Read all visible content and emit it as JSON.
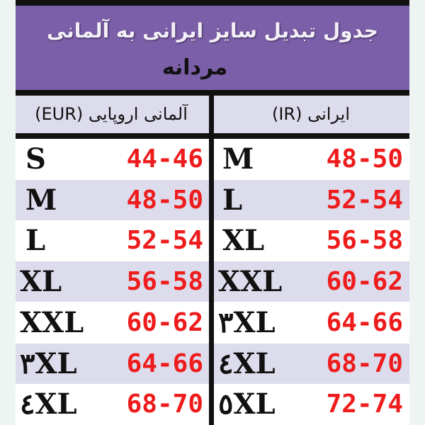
{
  "title": "جدول تبدیل سایز ایرانی به آلمانی",
  "subtitle": "مردانه",
  "headers": {
    "left": "آلمانی اروپایی (EUR)",
    "right": "ایرانی (IR)"
  },
  "colors": {
    "band": "#7b5fa8",
    "alt_row": "#dcdcec",
    "range_text": "#ee1c1c"
  },
  "rows": [
    {
      "eur_size": "S",
      "eur_range": "44-46",
      "ir_size": "M",
      "ir_range": "48-50"
    },
    {
      "eur_size": "M",
      "eur_range": "48-50",
      "ir_size": "L",
      "ir_range": "52-54"
    },
    {
      "eur_size": "L",
      "eur_range": "52-54",
      "ir_size": "XL",
      "ir_range": "56-58"
    },
    {
      "eur_size": "XL",
      "eur_range": "56-58",
      "ir_size": "XXL",
      "ir_range": "60-62"
    },
    {
      "eur_size": "XXL",
      "eur_range": "60-62",
      "ir_size": "۳XL",
      "ir_range": "64-66"
    },
    {
      "eur_size": "۳XL",
      "eur_range": "64-66",
      "ir_size": "٤XL",
      "ir_range": "68-70"
    },
    {
      "eur_size": "٤XL",
      "eur_range": "68-70",
      "ir_size": "٥XL",
      "ir_range": "72-74"
    }
  ]
}
